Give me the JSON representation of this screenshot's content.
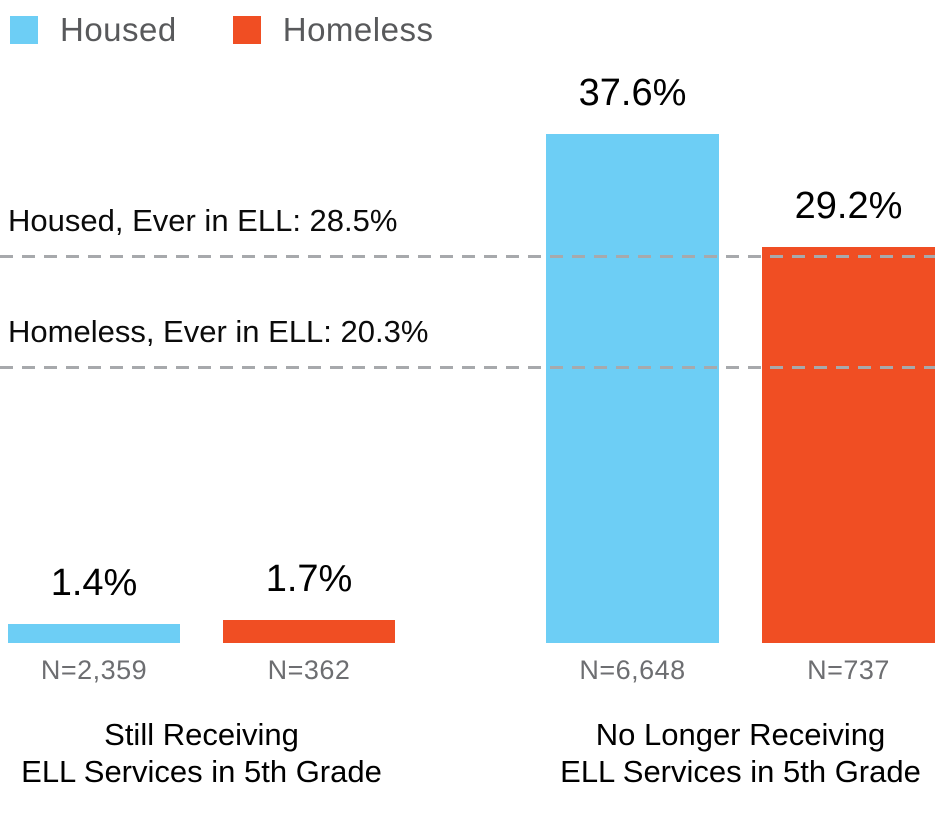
{
  "legend": {
    "items": [
      {
        "label": "Housed",
        "color": "#6DCEF5"
      },
      {
        "label": "Homeless",
        "color": "#F04E23"
      }
    ]
  },
  "chart_data": {
    "type": "bar",
    "title": "",
    "xlabel": "",
    "ylabel": "",
    "unit": "%",
    "ylim": [
      0,
      47.5
    ],
    "grid": false,
    "legend_position": "top-left",
    "categories": [
      "Still Receiving ELL Services in 5th Grade",
      "No Longer Receiving ELL Services in 5th Grade"
    ],
    "series": [
      {
        "name": "Housed",
        "color": "#6DCEF5",
        "values": [
          1.4,
          37.6
        ]
      },
      {
        "name": "Homeless",
        "color": "#F04E23",
        "values": [
          1.7,
          29.2
        ]
      }
    ],
    "groups": [
      {
        "label_line1": "Still Receiving",
        "label_line2": "ELL Services in 5th Grade",
        "bars": [
          {
            "series": "Housed",
            "value": 1.4,
            "value_label": "1.4%",
            "n_label": "N=2,359",
            "color": "#6DCEF5"
          },
          {
            "series": "Homeless",
            "value": 1.7,
            "value_label": "1.7%",
            "n_label": "N=362",
            "color": "#F04E23"
          }
        ]
      },
      {
        "label_line1": "No Longer Receiving",
        "label_line2": "ELL Services in 5th Grade",
        "bars": [
          {
            "series": "Housed",
            "value": 37.6,
            "value_label": "37.6%",
            "n_label": "N=6,648",
            "color": "#6DCEF5"
          },
          {
            "series": "Homeless",
            "value": 29.2,
            "value_label": "29.2%",
            "n_label": "N=737",
            "color": "#F04E23"
          }
        ]
      }
    ],
    "reference_lines": [
      {
        "label": "Housed, Ever in ELL: 28.5%",
        "value": 28.5
      },
      {
        "label": "Homeless, Ever in ELL: 20.3%",
        "value": 20.3
      }
    ]
  },
  "colors": {
    "housed": "#6DCEF5",
    "homeless": "#F04E23",
    "legend_text": "#58595B",
    "n_label_text": "#6D6E71",
    "reference_line": "#A7A9AC",
    "value_text": "#000000"
  }
}
